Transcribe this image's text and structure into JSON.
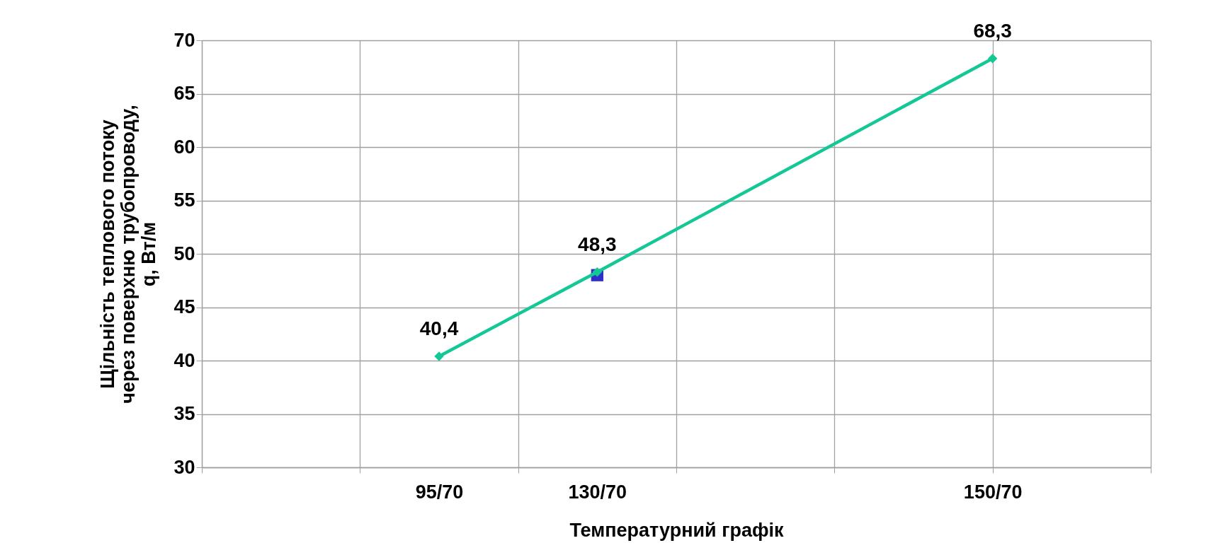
{
  "chart_data": {
    "type": "line",
    "xlabel": "Температурний графік",
    "ylabel": "Щільність теплового потоку\nчерез поверхню трубопроводу,\nq, Вт/м",
    "categories": [
      null,
      null,
      null,
      "95/70",
      null,
      "130/70",
      null,
      null,
      null,
      null,
      "150/70",
      null,
      null
    ],
    "ylim": [
      30,
      70
    ],
    "yticks": [
      30,
      35,
      40,
      45,
      50,
      55,
      60,
      65,
      70
    ],
    "grid": true,
    "series": [
      {
        "type": "scatter",
        "marker": "square",
        "color": "#3030c8",
        "values": [
          null,
          null,
          null,
          null,
          null,
          48.0,
          null,
          null,
          null,
          null,
          null,
          null,
          null
        ]
      },
      {
        "marker": "diamond",
        "color": "#14c896",
        "values": [
          null,
          null,
          null,
          40.4,
          null,
          48.3,
          null,
          null,
          null,
          null,
          68.3,
          null,
          null
        ],
        "value_labels": [
          null,
          null,
          null,
          "40,4",
          null,
          "48,3",
          null,
          null,
          null,
          null,
          "68,3",
          null,
          null
        ]
      }
    ]
  }
}
